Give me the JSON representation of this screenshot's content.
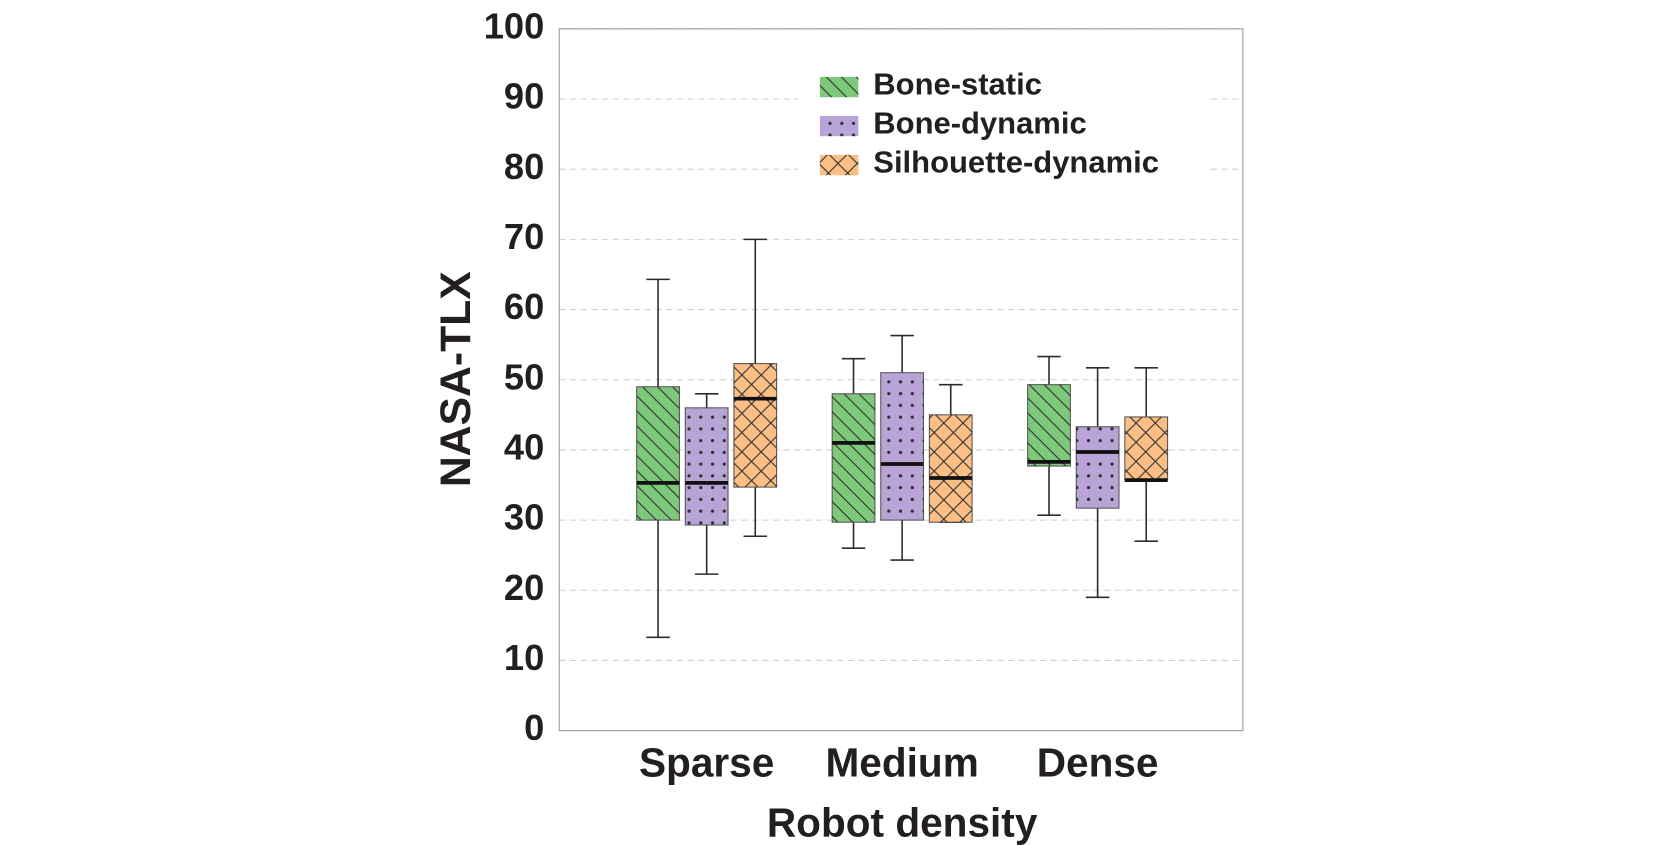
{
  "chart_data": {
    "type": "box",
    "x_label": "Robot density",
    "y_label": "NASA-TLX",
    "categories": [
      "Sparse",
      "Medium",
      "Dense"
    ],
    "ylim": [
      0,
      100
    ],
    "yticks": [
      0,
      10,
      20,
      30,
      40,
      50,
      60,
      70,
      80,
      90,
      100
    ],
    "grid": true,
    "legend": "upper-right",
    "series": [
      {
        "name": "Bone-static",
        "color": "#7dc87a",
        "pattern": "diagonal",
        "values": [
          {
            "min": 13.3,
            "q1": 30,
            "median": 35.3,
            "q3": 49,
            "max": 64.3
          },
          {
            "min": 26,
            "q1": 29.7,
            "median": 41,
            "q3": 48,
            "max": 53
          },
          {
            "min": 30.7,
            "q1": 37.7,
            "median": 38.3,
            "q3": 49.3,
            "max": 53.3
          }
        ]
      },
      {
        "name": "Bone-dynamic",
        "color": "#b8a4d6",
        "pattern": "dots",
        "values": [
          {
            "min": 22.3,
            "q1": 29.3,
            "median": 35.3,
            "q3": 46,
            "max": 48
          },
          {
            "min": 24.3,
            "q1": 30,
            "median": 38,
            "q3": 51,
            "max": 56.3
          },
          {
            "min": 19,
            "q1": 31.7,
            "median": 39.7,
            "q3": 43.3,
            "max": 51.7
          }
        ]
      },
      {
        "name": "Silhouette-dynamic",
        "color": "#fbbf86",
        "pattern": "cross",
        "values": [
          {
            "min": 27.7,
            "q1": 34.7,
            "median": 47.3,
            "q3": 52.3,
            "max": 70
          },
          {
            "min": 29.7,
            "q1": 29.7,
            "median": 36,
            "q3": 45,
            "max": 49.3
          },
          {
            "min": 27,
            "q1": 35.7,
            "median": 35.7,
            "q3": 44.7,
            "max": 51.7
          }
        ]
      }
    ]
  }
}
